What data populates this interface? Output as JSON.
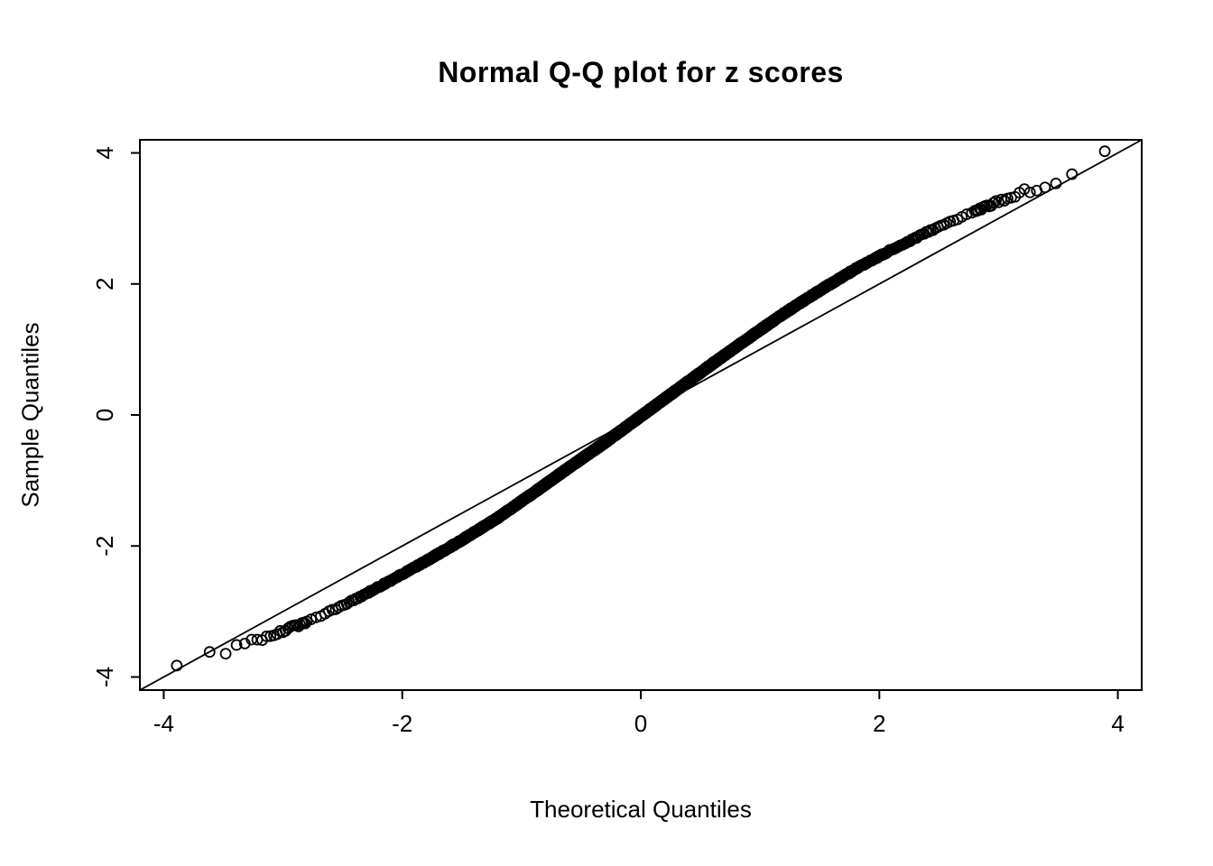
{
  "page": {
    "background_color": "#ffffff",
    "foreground_color": "#000000"
  },
  "chart_data": {
    "type": "scatter",
    "subtype": "normal-qq-plot",
    "title": "Normal Q-Q plot for z scores",
    "xlabel": "Theoretical Quantiles",
    "ylabel": "Sample Quantiles",
    "xlim": [
      -4.2,
      4.2
    ],
    "ylim": [
      -4.2,
      4.2
    ],
    "grid": false,
    "legend": null,
    "x_ticks": {
      "values": [
        -4,
        -2,
        0,
        2,
        4
      ],
      "labels": [
        "-4",
        "-2",
        "0",
        "2",
        "4"
      ]
    },
    "y_ticks": {
      "values": [
        -4,
        -2,
        0,
        2,
        4
      ],
      "labels": [
        "-4",
        "-2",
        "0",
        "2",
        "4"
      ]
    },
    "reference_line": {
      "intercept": 0,
      "slope": 1
    },
    "n_points": 10000,
    "marker": {
      "shape": "open-circle",
      "radius_px": 5.5,
      "color": "#000000"
    },
    "qq_curve": {
      "comment": "S-shaped band of sample quantiles vs theoretical normal quantiles, read off the plot",
      "theoretical": [
        -3.9,
        -3.6,
        -3.3,
        -3.0,
        -2.7,
        -2.4,
        -2.1,
        -1.8,
        -1.5,
        -1.2,
        -0.9,
        -0.6,
        -0.3,
        0,
        0.3,
        0.6,
        0.9,
        1.2,
        1.5,
        1.8,
        2.1,
        2.4,
        2.7,
        3.0,
        3.3,
        3.6,
        3.9
      ],
      "sample": [
        -3.78,
        -3.66,
        -3.5,
        -3.3,
        -3.08,
        -2.82,
        -2.53,
        -2.23,
        -1.91,
        -1.57,
        -1.19,
        -0.8,
        -0.42,
        -0.02,
        0.38,
        0.78,
        1.17,
        1.55,
        1.9,
        2.23,
        2.52,
        2.79,
        3.03,
        3.26,
        3.46,
        3.64,
        3.99
      ]
    }
  }
}
